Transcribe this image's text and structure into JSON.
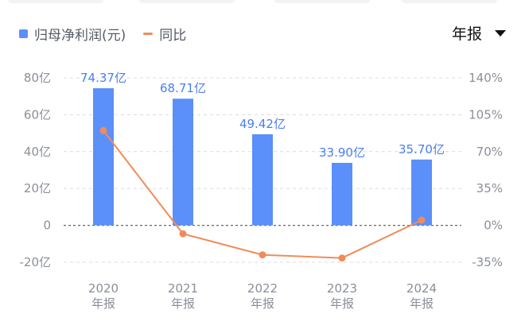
{
  "legend": {
    "bar_label": "归母净利润(元)",
    "line_label": "同比"
  },
  "period_select": {
    "value": "年报"
  },
  "colors": {
    "bar": "#5b8ff9",
    "line": "#f08c5a",
    "label": "#4a7ff0",
    "axis_text": "#8a8f99",
    "grid": "#d9dce1"
  },
  "chart_data": {
    "type": "bar",
    "categories": [
      "2020",
      "2021",
      "2022",
      "2023",
      "2024"
    ],
    "category_sublabels": [
      "年报",
      "年报",
      "年报",
      "年报",
      "年报"
    ],
    "series": [
      {
        "name": "归母净利润(元)",
        "type": "bar",
        "axis": "left",
        "values": [
          74.37,
          68.71,
          49.42,
          33.9,
          35.7
        ],
        "labels": [
          "74.37亿",
          "68.71亿",
          "49.42亿",
          "33.90亿",
          "35.70亿"
        ]
      },
      {
        "name": "同比",
        "type": "line",
        "axis": "right",
        "values": [
          90,
          -8,
          -28,
          -31,
          5
        ]
      }
    ],
    "left_axis": {
      "ylim": [
        -20,
        80
      ],
      "ticks": [
        80,
        60,
        40,
        20,
        0,
        -20
      ],
      "tick_labels": [
        "80亿",
        "60亿",
        "40亿",
        "20亿",
        "0",
        "-20亿"
      ]
    },
    "right_axis": {
      "ylim": [
        -35,
        140
      ],
      "ticks": [
        140,
        105,
        70,
        35,
        0,
        -35
      ],
      "tick_labels": [
        "140%",
        "105%",
        "70%",
        "35%",
        "0%",
        "-35%"
      ]
    },
    "grid": true,
    "legend_position": "top-left"
  }
}
